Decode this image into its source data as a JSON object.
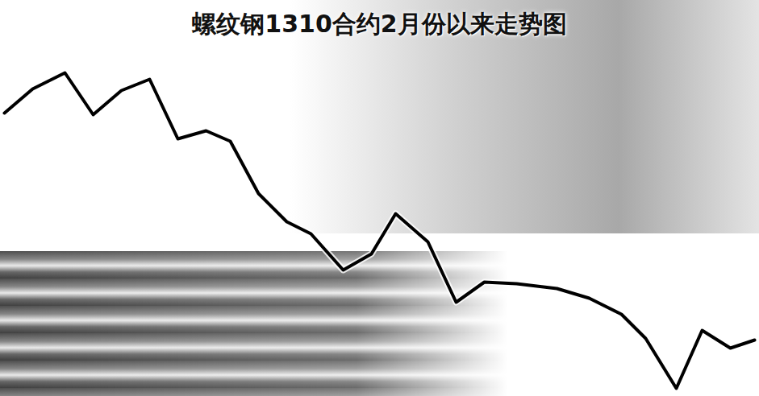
{
  "chart_data": {
    "type": "line",
    "title": "螺纹钢1310合约2月份以来走势图",
    "x": [
      5,
      40,
      80,
      115,
      150,
      185,
      220,
      255,
      285,
      320,
      355,
      385,
      425,
      460,
      490,
      530,
      565,
      600,
      640,
      690,
      730,
      770,
      800,
      838,
      870,
      905,
      935
    ],
    "values": [
      352,
      382,
      402,
      350,
      380,
      394,
      320,
      330,
      317,
      252,
      217,
      202,
      157,
      177,
      227,
      192,
      117,
      142,
      140,
      134,
      122,
      102,
      72,
      10,
      82,
      60,
      70
    ],
    "color": "#000000",
    "tick_labels": false
  }
}
